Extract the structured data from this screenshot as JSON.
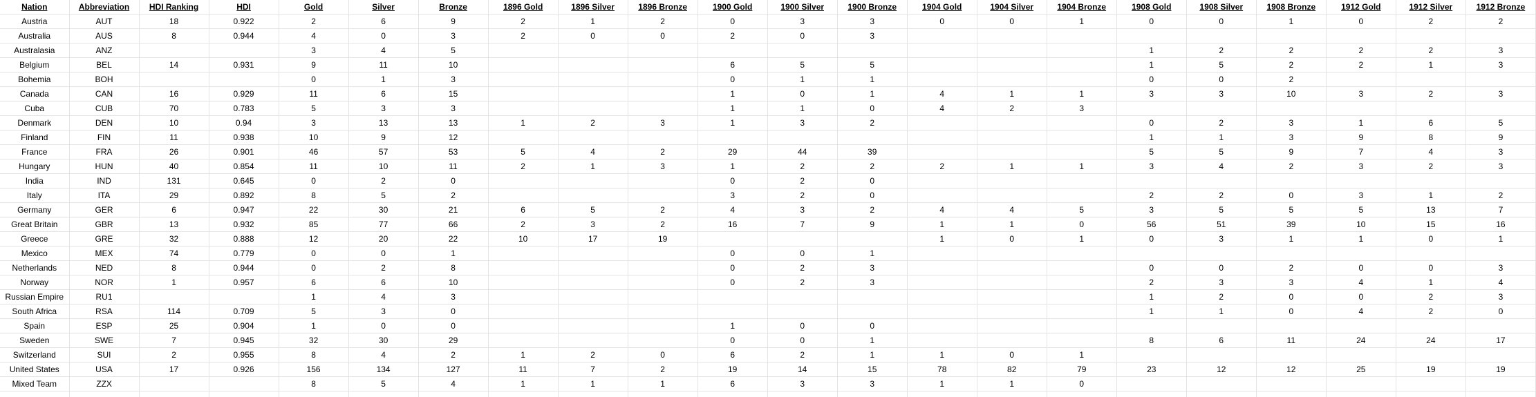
{
  "sheet": {
    "columns": [
      "Nation",
      "Abbreviation",
      "HDI Ranking",
      "HDI",
      "Gold",
      "Silver",
      "Bronze",
      "1896 Gold",
      "1896 Silver",
      "1896 Bronze",
      "1900 Gold",
      "1900 Silver",
      "1900 Bronze",
      "1904 Gold",
      "1904 Silver",
      "1904 Bronze",
      "1908 Gold",
      "1908 Silver",
      "1908 Bronze",
      "1912 Gold",
      "1912 Silver",
      "1912 Bronze"
    ],
    "rows": [
      [
        "Austria",
        "AUT",
        "18",
        "0.922",
        "2",
        "6",
        "9",
        "2",
        "1",
        "2",
        "0",
        "3",
        "3",
        "0",
        "0",
        "1",
        "0",
        "0",
        "1",
        "0",
        "2",
        "2"
      ],
      [
        "Australia",
        "AUS",
        "8",
        "0.944",
        "4",
        "0",
        "3",
        "2",
        "0",
        "0",
        "2",
        "0",
        "3",
        "",
        "",
        "",
        "",
        "",
        "",
        "",
        "",
        ""
      ],
      [
        "Australasia",
        "ANZ",
        "",
        "",
        "3",
        "4",
        "5",
        "",
        "",
        "",
        "",
        "",
        "",
        "",
        "",
        "",
        "1",
        "2",
        "2",
        "2",
        "2",
        "3"
      ],
      [
        "Belgium",
        "BEL",
        "14",
        "0.931",
        "9",
        "11",
        "10",
        "",
        "",
        "",
        "6",
        "5",
        "5",
        "",
        "",
        "",
        "1",
        "5",
        "2",
        "2",
        "1",
        "3"
      ],
      [
        "Bohemia",
        "BOH",
        "",
        "",
        "0",
        "1",
        "3",
        "",
        "",
        "",
        "0",
        "1",
        "1",
        "",
        "",
        "",
        "0",
        "0",
        "2",
        "",
        "",
        ""
      ],
      [
        "Canada",
        "CAN",
        "16",
        "0.929",
        "11",
        "6",
        "15",
        "",
        "",
        "",
        "1",
        "0",
        "1",
        "4",
        "1",
        "1",
        "3",
        "3",
        "10",
        "3",
        "2",
        "3"
      ],
      [
        "Cuba",
        "CUB",
        "70",
        "0.783",
        "5",
        "3",
        "3",
        "",
        "",
        "",
        "1",
        "1",
        "0",
        "4",
        "2",
        "3",
        "",
        "",
        "",
        "",
        "",
        ""
      ],
      [
        "Denmark",
        "DEN",
        "10",
        "0.94",
        "3",
        "13",
        "13",
        "1",
        "2",
        "3",
        "1",
        "3",
        "2",
        "",
        "",
        "",
        "0",
        "2",
        "3",
        "1",
        "6",
        "5"
      ],
      [
        "Finland",
        "FIN",
        "11",
        "0.938",
        "10",
        "9",
        "12",
        "",
        "",
        "",
        "",
        "",
        "",
        "",
        "",
        "",
        "1",
        "1",
        "3",
        "9",
        "8",
        "9"
      ],
      [
        "France",
        "FRA",
        "26",
        "0.901",
        "46",
        "57",
        "53",
        "5",
        "4",
        "2",
        "29",
        "44",
        "39",
        "",
        "",
        "",
        "5",
        "5",
        "9",
        "7",
        "4",
        "3"
      ],
      [
        "Hungary",
        "HUN",
        "40",
        "0.854",
        "11",
        "10",
        "11",
        "2",
        "1",
        "3",
        "1",
        "2",
        "2",
        "2",
        "1",
        "1",
        "3",
        "4",
        "2",
        "3",
        "2",
        "3"
      ],
      [
        "India",
        "IND",
        "131",
        "0.645",
        "0",
        "2",
        "0",
        "",
        "",
        "",
        "0",
        "2",
        "0",
        "",
        "",
        "",
        "",
        "",
        "",
        "",
        "",
        ""
      ],
      [
        "Italy",
        "ITA",
        "29",
        "0.892",
        "8",
        "5",
        "2",
        "",
        "",
        "",
        "3",
        "2",
        "0",
        "",
        "",
        "",
        "2",
        "2",
        "0",
        "3",
        "1",
        "2"
      ],
      [
        "Germany",
        "GER",
        "6",
        "0.947",
        "22",
        "30",
        "21",
        "6",
        "5",
        "2",
        "4",
        "3",
        "2",
        "4",
        "4",
        "5",
        "3",
        "5",
        "5",
        "5",
        "13",
        "7"
      ],
      [
        "Great Britain",
        "GBR",
        "13",
        "0.932",
        "85",
        "77",
        "66",
        "2",
        "3",
        "2",
        "16",
        "7",
        "9",
        "1",
        "1",
        "0",
        "56",
        "51",
        "39",
        "10",
        "15",
        "16"
      ],
      [
        "Greece",
        "GRE",
        "32",
        "0.888",
        "12",
        "20",
        "22",
        "10",
        "17",
        "19",
        "",
        "",
        "",
        "1",
        "0",
        "1",
        "0",
        "3",
        "1",
        "1",
        "0",
        "1"
      ],
      [
        "Mexico",
        "MEX",
        "74",
        "0.779",
        "0",
        "0",
        "1",
        "",
        "",
        "",
        "0",
        "0",
        "1",
        "",
        "",
        "",
        "",
        "",
        "",
        "",
        "",
        ""
      ],
      [
        "Netherlands",
        "NED",
        "8",
        "0.944",
        "0",
        "2",
        "8",
        "",
        "",
        "",
        "0",
        "2",
        "3",
        "",
        "",
        "",
        "0",
        "0",
        "2",
        "0",
        "0",
        "3"
      ],
      [
        "Norway",
        "NOR",
        "1",
        "0.957",
        "6",
        "6",
        "10",
        "",
        "",
        "",
        "0",
        "2",
        "3",
        "",
        "",
        "",
        "2",
        "3",
        "3",
        "4",
        "1",
        "4"
      ],
      [
        "Russian Empire",
        "RU1",
        "",
        "",
        "1",
        "4",
        "3",
        "",
        "",
        "",
        "",
        "",
        "",
        "",
        "",
        "",
        "1",
        "2",
        "0",
        "0",
        "2",
        "3"
      ],
      [
        "South Africa",
        "RSA",
        "114",
        "0.709",
        "5",
        "3",
        "0",
        "",
        "",
        "",
        "",
        "",
        "",
        "",
        "",
        "",
        "1",
        "1",
        "0",
        "4",
        "2",
        "0"
      ],
      [
        "Spain",
        "ESP",
        "25",
        "0.904",
        "1",
        "0",
        "0",
        "",
        "",
        "",
        "1",
        "0",
        "0",
        "",
        "",
        "",
        "",
        "",
        "",
        "",
        "",
        ""
      ],
      [
        "Sweden",
        "SWE",
        "7",
        "0.945",
        "32",
        "30",
        "29",
        "",
        "",
        "",
        "0",
        "0",
        "1",
        "",
        "",
        "",
        "8",
        "6",
        "11",
        "24",
        "24",
        "17"
      ],
      [
        "Switzerland",
        "SUI",
        "2",
        "0.955",
        "8",
        "4",
        "2",
        "1",
        "2",
        "0",
        "6",
        "2",
        "1",
        "1",
        "0",
        "1",
        "",
        "",
        "",
        "",
        "",
        ""
      ],
      [
        "United States",
        "USA",
        "17",
        "0.926",
        "156",
        "134",
        "127",
        "11",
        "7",
        "2",
        "19",
        "14",
        "15",
        "78",
        "82",
        "79",
        "23",
        "12",
        "12",
        "25",
        "19",
        "19"
      ],
      [
        "Mixed Team",
        "ZZX",
        "",
        "",
        "8",
        "5",
        "4",
        "1",
        "1",
        "1",
        "6",
        "3",
        "3",
        "1",
        "1",
        "0",
        "",
        "",
        "",
        "",
        "",
        ""
      ]
    ]
  }
}
